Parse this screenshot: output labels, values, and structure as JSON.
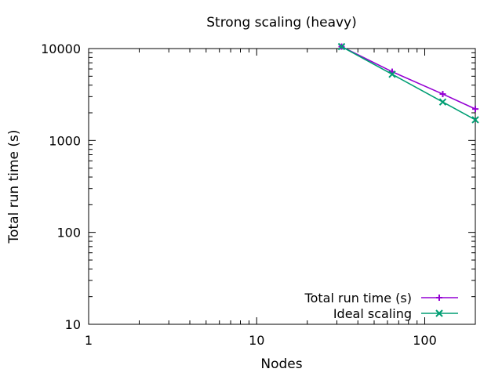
{
  "chart_data": {
    "type": "line",
    "title": "Strong scaling (heavy)",
    "xlabel": "Nodes",
    "ylabel": "Total run time (s)",
    "x_scale": "log",
    "y_scale": "log",
    "xlim": [
      1,
      200
    ],
    "ylim": [
      10,
      10000
    ],
    "x_ticks": [
      1,
      10,
      100
    ],
    "x_tick_labels": [
      "1",
      "10",
      "100"
    ],
    "y_ticks": [
      10,
      100,
      1000,
      10000
    ],
    "y_tick_labels": [
      "10",
      "100",
      "1000",
      "10000"
    ],
    "grid": false,
    "legend_position": "bottom-right",
    "series": [
      {
        "name": "Total run time (s)",
        "color": "#9400d3",
        "marker": "plus",
        "x": [
          32,
          64,
          128,
          200
        ],
        "y": [
          10500,
          5600,
          3200,
          2200
        ]
      },
      {
        "name": "Ideal scaling",
        "color": "#009e73",
        "marker": "cross",
        "x": [
          32,
          64,
          128,
          200
        ],
        "y": [
          10500,
          5250,
          2625,
          1680
        ]
      }
    ]
  }
}
